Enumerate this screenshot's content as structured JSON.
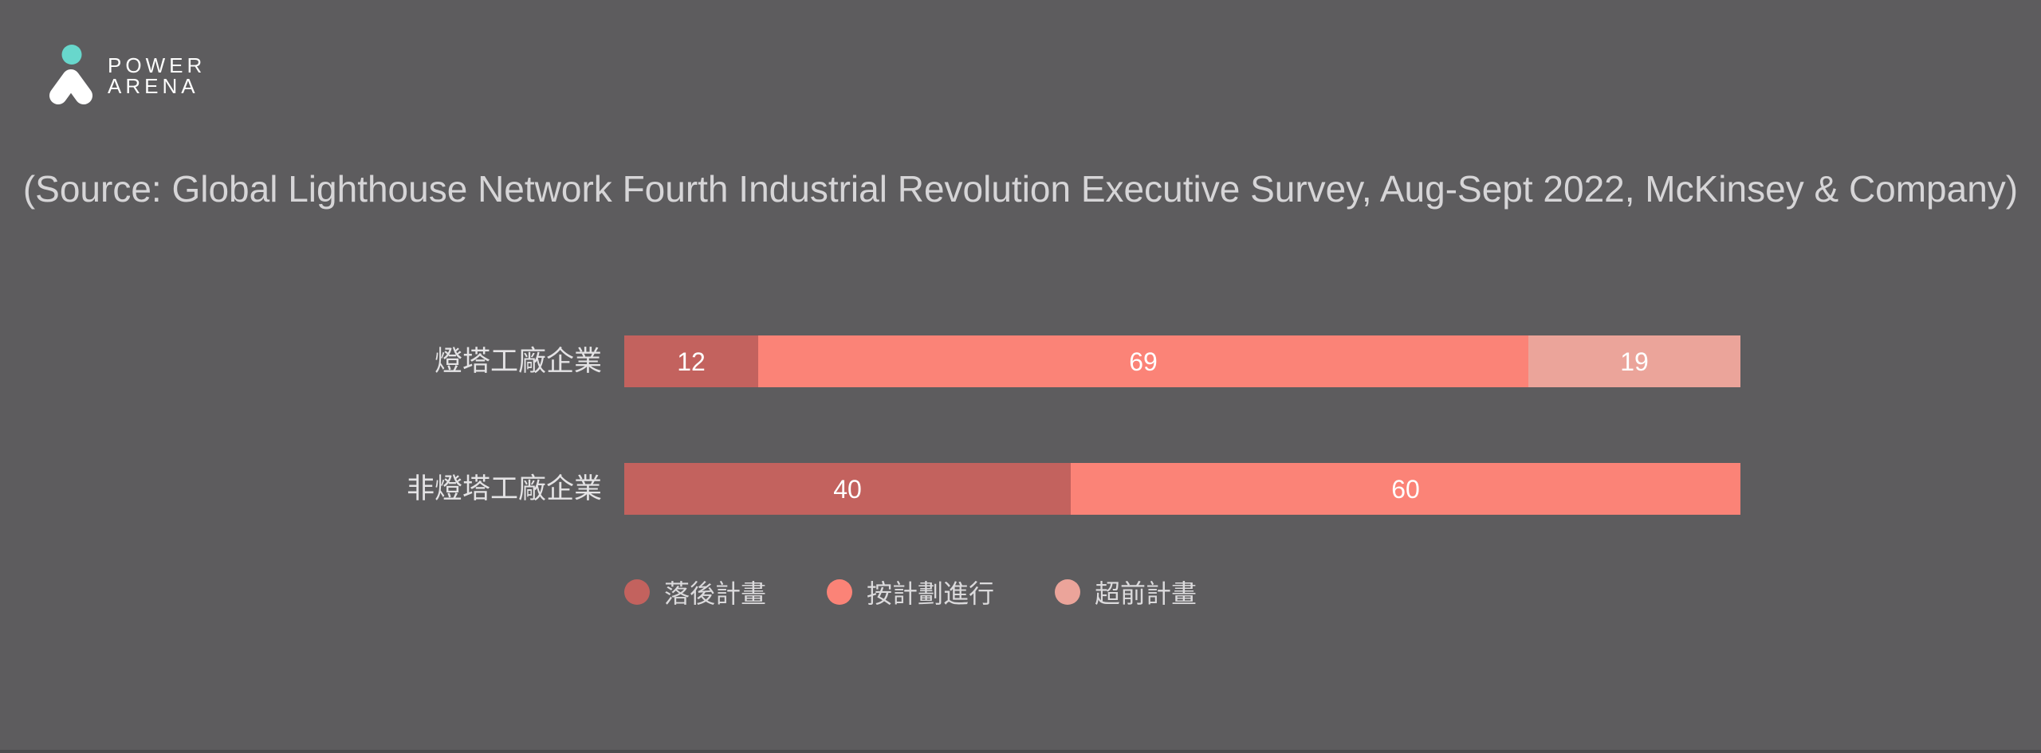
{
  "brand": {
    "line1": "POWER",
    "line2": "ARENA",
    "mark_dot_color": "#68d7cc",
    "mark_shape_color": "#ffffff"
  },
  "source_caption": "(Source: Global Lighthouse Network Fourth Industrial Revolution Executive Survey, Aug-Sept 2022, McKinsey & Company)",
  "colors": {
    "background": "#5d5c5e",
    "caption_text": "#d6d5d7",
    "row_label_text": "#e4e3e5",
    "value_text": "#ffffff",
    "legend_text": "#dbdadc",
    "bottom_edge": "#4c4b4d"
  },
  "chart_data": {
    "type": "bar",
    "orientation": "horizontal",
    "stacked": true,
    "unit": "percent",
    "xlim": [
      0,
      100
    ],
    "grid": false,
    "legend_position": "bottom",
    "value_labels": true,
    "categories": [
      "燈塔工廠企業",
      "非燈塔工廠企業"
    ],
    "series": [
      {
        "name": "落後計畫",
        "color": "#c3625e",
        "values": [
          12,
          40
        ]
      },
      {
        "name": "按計劃進行",
        "color": "#fb8377",
        "values": [
          69,
          60
        ]
      },
      {
        "name": "超前計畫",
        "color": "#eba49a",
        "values": [
          19,
          0
        ]
      }
    ]
  }
}
